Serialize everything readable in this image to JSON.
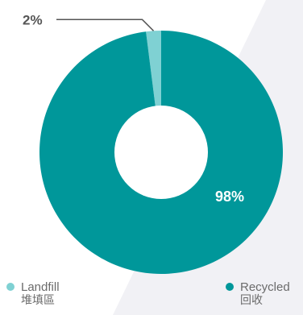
{
  "chart_data": {
    "type": "pie",
    "donut": true,
    "categories": [
      "Landfill",
      "Recycled"
    ],
    "category_labels_zh": [
      "堆填區",
      "回收"
    ],
    "values": [
      2,
      98
    ],
    "data_labels": [
      "2%",
      "98%"
    ],
    "colors": [
      "#7fd1d3",
      "#00979a"
    ],
    "legend": "bottom",
    "label_color_outside": "#555555",
    "label_color_inside": "#ffffff"
  },
  "legend": {
    "items": [
      {
        "label": "Landfill",
        "label_zh": "堆填區"
      },
      {
        "label": "Recycled",
        "label_zh": "回收"
      }
    ]
  }
}
